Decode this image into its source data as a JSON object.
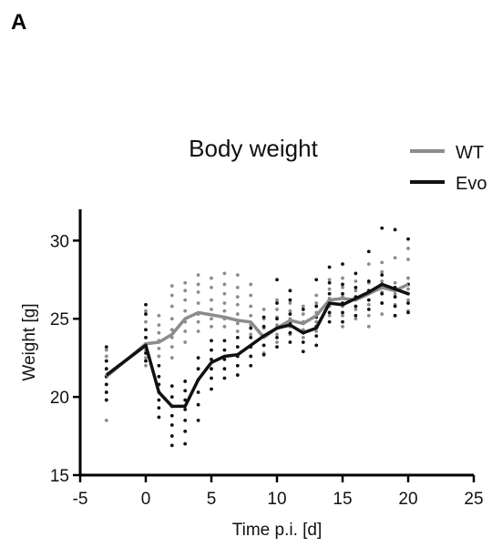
{
  "panel_label": "A",
  "chart_data": {
    "type": "line",
    "title": "Body weight",
    "xlabel": "Time p.i. [d]",
    "ylabel": "Weight [g]",
    "xlim": [
      -5,
      25
    ],
    "ylim": [
      15,
      32
    ],
    "xticks": [
      -5,
      0,
      5,
      10,
      15,
      20,
      25
    ],
    "yticks": [
      15,
      20,
      25,
      30
    ],
    "legend_position": "top-right",
    "series": [
      {
        "name": "WT",
        "color": "#8c8c8c",
        "x": [
          -3,
          0,
          1,
          2,
          3,
          4,
          6,
          7,
          8,
          9,
          10,
          11,
          12,
          13,
          14,
          15,
          16,
          17,
          18,
          19,
          20
        ],
        "y": [
          21.3,
          23.4,
          23.5,
          24.0,
          25.0,
          25.4,
          25.1,
          24.9,
          24.8,
          23.8,
          24.4,
          24.9,
          24.7,
          25.2,
          26.2,
          26.3,
          26.2,
          26.6,
          27.0,
          26.8,
          27.2
        ],
        "points": [
          [
            -3,
            18.5
          ],
          [
            -3,
            19.8
          ],
          [
            -3,
            20.3
          ],
          [
            -3,
            20.8
          ],
          [
            -3,
            21.3
          ],
          [
            -3,
            21.8
          ],
          [
            -3,
            22.3
          ],
          [
            -3,
            22.6
          ],
          [
            -3,
            23.0
          ],
          [
            0,
            22.0
          ],
          [
            0,
            22.5
          ],
          [
            0,
            23.0
          ],
          [
            0,
            23.4
          ],
          [
            0,
            23.8
          ],
          [
            0,
            24.3
          ],
          [
            0,
            24.8
          ],
          [
            0,
            25.5
          ],
          [
            1,
            22.6
          ],
          [
            1,
            23.1
          ],
          [
            1,
            23.6
          ],
          [
            1,
            24.1
          ],
          [
            1,
            24.6
          ],
          [
            1,
            25.2
          ],
          [
            2,
            22.5
          ],
          [
            2,
            23.2
          ],
          [
            2,
            23.8
          ],
          [
            2,
            24.3
          ],
          [
            2,
            25.0
          ],
          [
            2,
            25.8
          ],
          [
            2,
            26.5
          ],
          [
            2,
            27.1
          ],
          [
            3,
            23.5
          ],
          [
            3,
            24.2
          ],
          [
            3,
            24.8
          ],
          [
            3,
            25.5
          ],
          [
            3,
            26.2
          ],
          [
            3,
            26.8
          ],
          [
            3,
            27.3
          ],
          [
            4,
            24.2
          ],
          [
            4,
            24.8
          ],
          [
            4,
            25.3
          ],
          [
            4,
            26.0
          ],
          [
            4,
            26.7
          ],
          [
            4,
            27.2
          ],
          [
            4,
            27.8
          ],
          [
            5,
            24.5
          ],
          [
            5,
            25.0
          ],
          [
            5,
            25.6
          ],
          [
            5,
            26.2
          ],
          [
            5,
            27.0
          ],
          [
            5,
            27.6
          ],
          [
            6,
            24.5
          ],
          [
            6,
            25.0
          ],
          [
            6,
            25.5
          ],
          [
            6,
            26.0
          ],
          [
            6,
            26.6
          ],
          [
            6,
            27.2
          ],
          [
            6,
            27.9
          ],
          [
            7,
            24.2
          ],
          [
            7,
            24.7
          ],
          [
            7,
            25.3
          ],
          [
            7,
            25.9
          ],
          [
            7,
            26.4
          ],
          [
            7,
            27.0
          ],
          [
            7,
            27.8
          ],
          [
            8,
            24.0
          ],
          [
            8,
            24.6
          ],
          [
            8,
            25.2
          ],
          [
            8,
            25.8
          ],
          [
            8,
            26.5
          ],
          [
            8,
            27.2
          ],
          [
            9,
            22.8
          ],
          [
            9,
            23.3
          ],
          [
            9,
            23.9
          ],
          [
            9,
            24.4
          ],
          [
            9,
            25.0
          ],
          [
            9,
            25.6
          ],
          [
            10,
            23.5
          ],
          [
            10,
            24.0
          ],
          [
            10,
            24.6
          ],
          [
            10,
            25.1
          ],
          [
            10,
            25.6
          ],
          [
            10,
            26.2
          ],
          [
            11,
            24.0
          ],
          [
            11,
            24.5
          ],
          [
            11,
            25.0
          ],
          [
            11,
            25.5
          ],
          [
            11,
            26.0
          ],
          [
            12,
            23.8
          ],
          [
            12,
            24.3
          ],
          [
            12,
            24.8
          ],
          [
            12,
            25.3
          ],
          [
            12,
            25.8
          ],
          [
            13,
            24.2
          ],
          [
            13,
            24.8
          ],
          [
            13,
            25.4
          ],
          [
            13,
            26.0
          ],
          [
            13,
            26.5
          ],
          [
            14,
            25.2
          ],
          [
            14,
            25.8
          ],
          [
            14,
            26.3
          ],
          [
            14,
            26.9
          ],
          [
            14,
            27.5
          ],
          [
            15,
            24.5
          ],
          [
            15,
            25.2
          ],
          [
            15,
            25.8
          ],
          [
            15,
            26.4
          ],
          [
            15,
            27.0
          ],
          [
            15,
            27.6
          ],
          [
            16,
            25.0
          ],
          [
            16,
            25.6
          ],
          [
            16,
            26.2
          ],
          [
            16,
            26.8
          ],
          [
            16,
            27.4
          ],
          [
            17,
            24.5
          ],
          [
            17,
            25.2
          ],
          [
            17,
            25.9
          ],
          [
            17,
            26.6
          ],
          [
            17,
            27.3
          ],
          [
            17,
            28.5
          ],
          [
            18,
            25.3
          ],
          [
            18,
            26.0
          ],
          [
            18,
            26.7
          ],
          [
            18,
            27.4
          ],
          [
            18,
            28.0
          ],
          [
            18,
            28.6
          ],
          [
            19,
            25.2
          ],
          [
            19,
            25.9
          ],
          [
            19,
            26.6
          ],
          [
            19,
            27.3
          ],
          [
            19,
            28.9
          ],
          [
            20,
            25.5
          ],
          [
            20,
            26.2
          ],
          [
            20,
            26.9
          ],
          [
            20,
            27.6
          ],
          [
            20,
            28.8
          ],
          [
            20,
            29.5
          ]
        ]
      },
      {
        "name": "Evo",
        "color": "#111111",
        "x": [
          -3,
          0,
          1,
          2,
          3,
          4,
          5,
          6,
          7,
          8,
          9,
          10,
          11,
          12,
          13,
          14,
          15,
          16,
          17,
          18,
          20
        ],
        "y": [
          21.4,
          23.3,
          20.3,
          19.4,
          19.4,
          21.1,
          22.2,
          22.6,
          22.7,
          23.3,
          23.9,
          24.4,
          24.6,
          24.1,
          24.4,
          26.0,
          25.9,
          26.3,
          26.7,
          27.2,
          26.6
        ],
        "points": [
          [
            -3,
            19.8
          ],
          [
            -3,
            20.3
          ],
          [
            -3,
            20.8
          ],
          [
            -3,
            21.3
          ],
          [
            -3,
            21.8
          ],
          [
            -3,
            22.3
          ],
          [
            -3,
            23.2
          ],
          [
            0,
            22.3
          ],
          [
            0,
            22.8
          ],
          [
            0,
            23.3
          ],
          [
            0,
            23.8
          ],
          [
            0,
            24.3
          ],
          [
            0,
            25.3
          ],
          [
            0,
            25.9
          ],
          [
            1,
            18.7
          ],
          [
            1,
            19.3
          ],
          [
            1,
            19.8
          ],
          [
            1,
            20.3
          ],
          [
            1,
            20.8
          ],
          [
            1,
            21.3
          ],
          [
            1,
            22.0
          ],
          [
            2,
            16.9
          ],
          [
            2,
            17.5
          ],
          [
            2,
            18.2
          ],
          [
            2,
            18.8
          ],
          [
            2,
            19.4
          ],
          [
            2,
            20.0
          ],
          [
            2,
            20.7
          ],
          [
            3,
            17.0
          ],
          [
            3,
            17.8
          ],
          [
            3,
            18.5
          ],
          [
            3,
            19.2
          ],
          [
            3,
            19.8
          ],
          [
            3,
            20.4
          ],
          [
            3,
            21.0
          ],
          [
            4,
            18.5
          ],
          [
            4,
            19.5
          ],
          [
            4,
            20.3
          ],
          [
            4,
            21.1
          ],
          [
            4,
            21.8
          ],
          [
            4,
            22.5
          ],
          [
            5,
            20.5
          ],
          [
            5,
            21.2
          ],
          [
            5,
            21.8
          ],
          [
            5,
            22.4
          ],
          [
            5,
            23.0
          ],
          [
            5,
            23.6
          ],
          [
            6,
            21.2
          ],
          [
            6,
            21.8
          ],
          [
            6,
            22.4
          ],
          [
            6,
            23.0
          ],
          [
            6,
            23.6
          ],
          [
            7,
            21.4
          ],
          [
            7,
            22.0
          ],
          [
            7,
            22.6
          ],
          [
            7,
            23.2
          ],
          [
            7,
            23.8
          ],
          [
            8,
            22.0
          ],
          [
            8,
            22.6
          ],
          [
            8,
            23.2
          ],
          [
            8,
            23.8
          ],
          [
            8,
            24.4
          ],
          [
            9,
            22.7
          ],
          [
            9,
            23.3
          ],
          [
            9,
            23.9
          ],
          [
            9,
            24.5
          ],
          [
            9,
            25.1
          ],
          [
            10,
            23.2
          ],
          [
            10,
            23.8
          ],
          [
            10,
            24.4
          ],
          [
            10,
            25.0
          ],
          [
            10,
            26.0
          ],
          [
            10,
            27.5
          ],
          [
            11,
            23.5
          ],
          [
            11,
            24.1
          ],
          [
            11,
            24.7
          ],
          [
            11,
            25.3
          ],
          [
            11,
            26.2
          ],
          [
            11,
            26.8
          ],
          [
            12,
            22.9
          ],
          [
            12,
            23.5
          ],
          [
            12,
            24.1
          ],
          [
            12,
            24.7
          ],
          [
            12,
            25.6
          ],
          [
            13,
            23.3
          ],
          [
            13,
            23.9
          ],
          [
            13,
            24.5
          ],
          [
            13,
            25.1
          ],
          [
            13,
            25.8
          ],
          [
            13,
            27.5
          ],
          [
            14,
            24.8
          ],
          [
            14,
            25.4
          ],
          [
            14,
            26.0
          ],
          [
            14,
            26.6
          ],
          [
            14,
            27.3
          ],
          [
            14,
            28.3
          ],
          [
            15,
            24.8
          ],
          [
            15,
            25.4
          ],
          [
            15,
            26.0
          ],
          [
            15,
            26.6
          ],
          [
            15,
            27.2
          ],
          [
            15,
            28.5
          ],
          [
            16,
            25.2
          ],
          [
            16,
            25.8
          ],
          [
            16,
            26.4
          ],
          [
            16,
            27.0
          ],
          [
            16,
            27.9
          ],
          [
            17,
            25.6
          ],
          [
            17,
            26.2
          ],
          [
            17,
            26.8
          ],
          [
            17,
            27.4
          ],
          [
            17,
            29.3
          ],
          [
            18,
            26.0
          ],
          [
            18,
            26.6
          ],
          [
            18,
            27.2
          ],
          [
            18,
            27.8
          ],
          [
            18,
            30.8
          ],
          [
            19,
            25.2
          ],
          [
            19,
            25.8
          ],
          [
            19,
            26.4
          ],
          [
            19,
            27.0
          ],
          [
            19,
            30.7
          ],
          [
            20,
            25.4
          ],
          [
            20,
            26.0
          ],
          [
            20,
            26.6
          ],
          [
            20,
            27.2
          ],
          [
            20,
            30.1
          ]
        ]
      }
    ]
  }
}
